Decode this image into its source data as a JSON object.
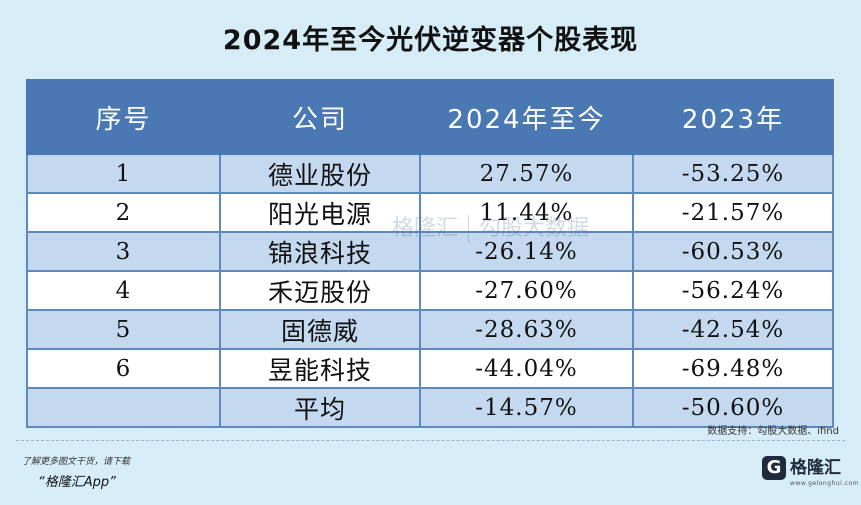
{
  "title": "2024年至今光伏逆变器个股表现",
  "table": {
    "headers": [
      "序号",
      "公司",
      "2024年至今",
      "2023年"
    ],
    "rows": [
      {
        "no": "1",
        "company": "德业股份",
        "ytd": "27.57%",
        "y2023": "-53.25%"
      },
      {
        "no": "2",
        "company": "阳光电源",
        "ytd": "11.44%",
        "y2023": "-21.57%"
      },
      {
        "no": "3",
        "company": "锦浪科技",
        "ytd": "-26.14%",
        "y2023": "-60.53%"
      },
      {
        "no": "4",
        "company": "禾迈股份",
        "ytd": "-27.60%",
        "y2023": "-56.24%"
      },
      {
        "no": "5",
        "company": "固德威",
        "ytd": "-28.63%",
        "y2023": "-42.54%"
      },
      {
        "no": "6",
        "company": "昱能科技",
        "ytd": "-44.04%",
        "y2023": "-69.48%"
      },
      {
        "no": "",
        "company": "平均",
        "ytd": "-14.57%",
        "y2023": "-50.60%"
      }
    ]
  },
  "watermark": {
    "left": "格隆汇",
    "right": "勾股大数据"
  },
  "source": "数据支持：勾股大数据、ifind",
  "footer": {
    "promo_line": "了解更多图文干货，请下载",
    "app_name": "“格隆汇App”",
    "logo_mark": "G",
    "logo_text": "格隆汇",
    "logo_sub": "www.gelonghui.com"
  },
  "colors": {
    "header_bg": "#4a78b3",
    "row_alt": "#c4d8ef",
    "page_bg": "#d6ecf7"
  }
}
